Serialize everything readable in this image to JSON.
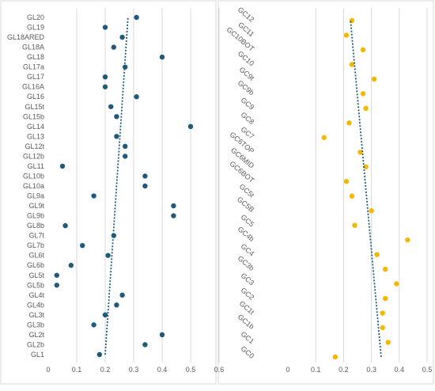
{
  "chart_data": [
    {
      "type": "scatter",
      "title": "",
      "xlabel": "",
      "ylabel": "",
      "xlim": [
        0,
        0.6
      ],
      "x_ticks": [
        "0",
        "0.1",
        "0.2",
        "0.3",
        "0.4",
        "0.5",
        "0.6"
      ],
      "grid": "vertical",
      "marker_color": "#1f5a7a",
      "trendline": {
        "style": "dotted",
        "color": "#1f5a7a",
        "from": [
          0.2,
          "GL1"
        ],
        "to": [
          0.28,
          "GL20"
        ]
      },
      "categories": [
        "GL20",
        "GL19",
        "GL18ARED",
        "GL18A",
        "GL18",
        "GL17a",
        "GL17",
        "GL16A",
        "GL16",
        "GL15t",
        "GL15b",
        "GL14",
        "GL13",
        "GL12t",
        "GL12b",
        "GL11",
        "GL10b",
        "GL10a",
        "GL9a",
        "GL9t",
        "GL9b",
        "GL8b",
        "GL7t",
        "GL7b",
        "GL6t",
        "GL6b",
        "GL5t",
        "GL5b",
        "GL4t",
        "GL4b",
        "GL3t",
        "GL3b",
        "GL2t",
        "GL2b",
        "GL1"
      ],
      "values": [
        0.31,
        0.2,
        0.26,
        0.23,
        0.4,
        0.27,
        0.2,
        0.2,
        0.31,
        0.22,
        0.24,
        0.5,
        0.24,
        0.27,
        0.27,
        0.05,
        0.34,
        0.34,
        0.16,
        0.44,
        0.44,
        0.06,
        0.23,
        0.12,
        0.21,
        0.08,
        0.03,
        0.03,
        0.26,
        0.24,
        0.2,
        0.16,
        0.4,
        0.34,
        0.18
      ]
    },
    {
      "type": "scatter",
      "title": "",
      "xlabel": "",
      "ylabel": "",
      "xlim": [
        0,
        0.5
      ],
      "x_ticks": [
        "0",
        "0.1",
        "0.2",
        "0.3",
        "0.4",
        "0.5"
      ],
      "grid": "vertical",
      "marker_color": "#f5b800",
      "trendline": {
        "style": "dotted",
        "color": "#1f5a7a",
        "from": [
          0.335,
          "GC0"
        ],
        "to": [
          0.225,
          "GC12"
        ]
      },
      "categories": [
        "GC12",
        "GC11",
        "GC10BOT",
        "GC10",
        "GC9t",
        "GC9b",
        "GC9",
        "GC8",
        "GC7",
        "GC6TOP",
        "GC6MID",
        "GC6BOT",
        "GC5t",
        "GC5B",
        "GC5",
        "GC4b",
        "GC4",
        "GC3b",
        "GC3",
        "GC2",
        "GC1t",
        "GC1b",
        "GC1",
        "GC0"
      ],
      "values": [
        0.23,
        0.21,
        0.27,
        0.23,
        0.31,
        0.27,
        0.28,
        0.22,
        0.13,
        0.26,
        0.28,
        0.21,
        0.23,
        0.3,
        0.24,
        0.43,
        0.32,
        0.35,
        0.39,
        0.35,
        0.34,
        0.34,
        0.36,
        0.17
      ]
    }
  ]
}
